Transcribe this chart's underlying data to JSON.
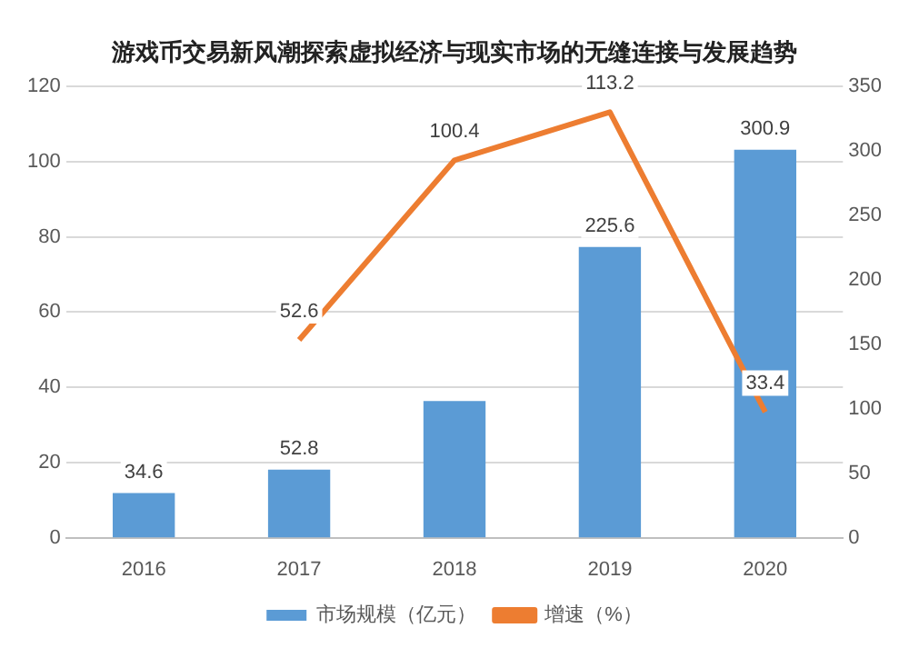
{
  "chart_data": {
    "type": "bar",
    "title": "游戏币交易新风潮探索虚拟经济与现实市场的无缝连接与发展趋势",
    "categories": [
      "2016",
      "2017",
      "2018",
      "2019",
      "2020"
    ],
    "series": [
      {
        "name": "市场规模（亿元）",
        "axis": "y2",
        "color": "#5b9bd5",
        "values": [
          34.6,
          52.8,
          106,
          225.6,
          300.9
        ],
        "value_labels": [
          "34.6",
          "52.8",
          null,
          "225.6",
          "300.9"
        ]
      },
      {
        "name": "增速（%）",
        "type": "line",
        "axis": "y",
        "color": "#ed7d31",
        "values": [
          null,
          52.6,
          100.4,
          113.2,
          33.4
        ],
        "value_labels": [
          null,
          "52.6",
          "100.4",
          "113.2",
          "33.4"
        ]
      }
    ],
    "ylim": [
      0,
      120
    ],
    "yticks": [
      0,
      20,
      40,
      60,
      80,
      100,
      120
    ],
    "y2lim": [
      0,
      350
    ],
    "y2ticks": [
      0,
      50,
      100,
      150,
      200,
      250,
      300,
      350
    ],
    "grid": "y",
    "legend": "bottom",
    "marker": "none"
  }
}
